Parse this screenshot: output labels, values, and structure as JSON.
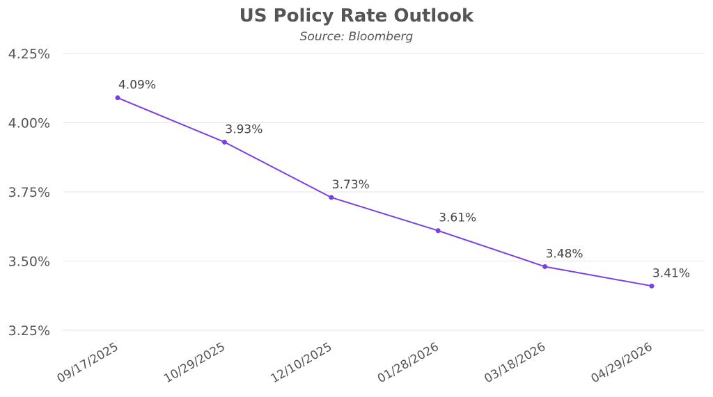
{
  "chart_data": {
    "type": "line",
    "title": "US Policy Rate Outlook",
    "subtitle": "Source: Bloomberg",
    "xlabel": "",
    "ylabel": "",
    "categories": [
      "09/17/2025",
      "10/29/2025",
      "12/10/2025",
      "01/28/2026",
      "03/18/2026",
      "04/29/2026"
    ],
    "series": [
      {
        "values": [
          4.09,
          3.93,
          3.73,
          3.61,
          3.48,
          3.41
        ],
        "data_labels": [
          "4.09%",
          "3.93%",
          "3.73%",
          "3.61%",
          "3.48%",
          "3.41%"
        ],
        "color": "#7B3FE4"
      }
    ],
    "ylim": [
      3.25,
      4.25
    ],
    "yticks": [
      3.25,
      3.5,
      3.75,
      4.0,
      4.25
    ],
    "ytick_labels": [
      "3.25%",
      "3.50%",
      "3.75%",
      "4.00%",
      "4.25%"
    ],
    "grid": true,
    "gridline_color": "#e6e6e6",
    "axis_text_color": "#555555"
  }
}
